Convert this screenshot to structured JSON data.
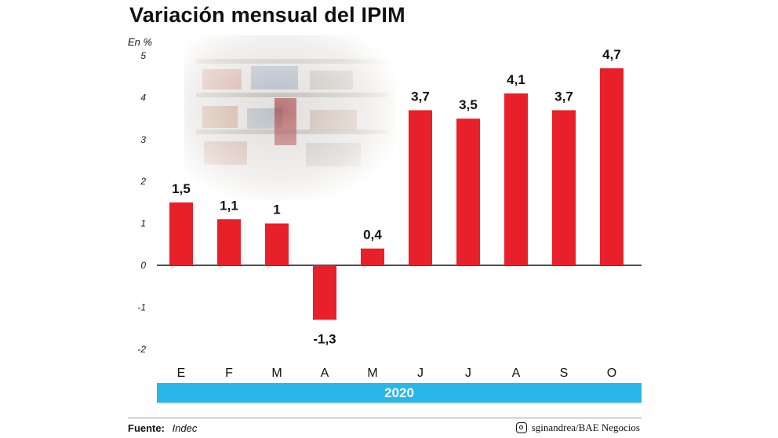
{
  "header": {
    "title": "Variación mensual del IPIM",
    "unit": "En %"
  },
  "chart_data": {
    "type": "bar",
    "title": "Variación mensual del IPIM",
    "ylabel": "En %",
    "xlabel": "2020",
    "categories": [
      "E",
      "F",
      "M",
      "A",
      "M",
      "J",
      "J",
      "A",
      "S",
      "O"
    ],
    "values": [
      1.5,
      1.1,
      1,
      -1.3,
      0.4,
      3.7,
      3.5,
      4.1,
      3.7,
      4.7
    ],
    "value_labels": [
      "1,5",
      "1,1",
      "1",
      "-1,3",
      "0,4",
      "3,7",
      "3,5",
      "4,1",
      "3,7",
      "4,7"
    ],
    "yticks": [
      "5",
      "4",
      "3",
      "2",
      "1",
      "0",
      "-1",
      "-2"
    ],
    "ylim": [
      -2,
      5
    ],
    "bar_color": "#e8202a",
    "grid": false
  },
  "year_band": {
    "label": "2020",
    "color": "#29b6e8"
  },
  "footer": {
    "source_label": "Fuente:",
    "source_value": "Indec",
    "credit": "sginandrea/BAE Negocios"
  }
}
